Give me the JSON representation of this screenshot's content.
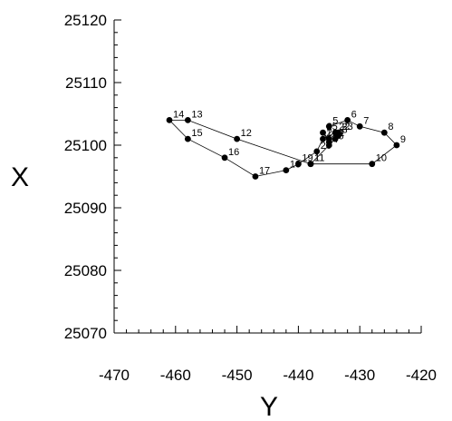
{
  "chart_data": {
    "type": "scatter",
    "title": "",
    "xlabel": "Y",
    "ylabel": "X",
    "xlim": [
      -470,
      -420
    ],
    "ylim": [
      25070,
      25120
    ],
    "xticks": [
      -470,
      -460,
      -450,
      -440,
      -430,
      -420
    ],
    "yticks": [
      25070,
      25080,
      25090,
      25100,
      25110,
      25120
    ],
    "grid": false,
    "connected": true,
    "series": [
      {
        "points": [
          {
            "label": "1",
            "x": -438,
            "y": 25097
          },
          {
            "label": "2",
            "x": -434,
            "y": 25101
          },
          {
            "label": "3",
            "x": -433.5,
            "y": 25101.5
          },
          {
            "label": "4",
            "x": -435,
            "y": 25100
          },
          {
            "label": "5",
            "x": -435,
            "y": 25103
          },
          {
            "label": "6",
            "x": -432,
            "y": 25104
          },
          {
            "label": "7",
            "x": -430,
            "y": 25103
          },
          {
            "label": "8",
            "x": -426,
            "y": 25102
          },
          {
            "label": "9",
            "x": -424,
            "y": 25100
          },
          {
            "label": "10",
            "x": -428,
            "y": 25097
          },
          {
            "label": "11",
            "x": -438,
            "y": 25097
          },
          {
            "label": "12",
            "x": -450,
            "y": 25101
          },
          {
            "label": "13",
            "x": -458,
            "y": 25104
          },
          {
            "label": "14",
            "x": -461,
            "y": 25104
          },
          {
            "label": "15",
            "x": -458,
            "y": 25101
          },
          {
            "label": "16",
            "x": -452,
            "y": 25098
          },
          {
            "label": "17",
            "x": -447,
            "y": 25095
          },
          {
            "label": "18",
            "x": -442,
            "y": 25096
          },
          {
            "label": "19",
            "x": -440,
            "y": 25097
          },
          {
            "label": "20",
            "x": -437,
            "y": 25099
          },
          {
            "label": "21",
            "x": -436,
            "y": 25101
          },
          {
            "label": "22",
            "x": -434,
            "y": 25102
          },
          {
            "label": "23",
            "x": -433.5,
            "y": 25102
          },
          {
            "label": "24",
            "x": -435,
            "y": 25101
          },
          {
            "label": "25",
            "x": -436,
            "y": 25102
          },
          {
            "label": "26",
            "x": -435,
            "y": 25100.5
          }
        ]
      }
    ]
  }
}
